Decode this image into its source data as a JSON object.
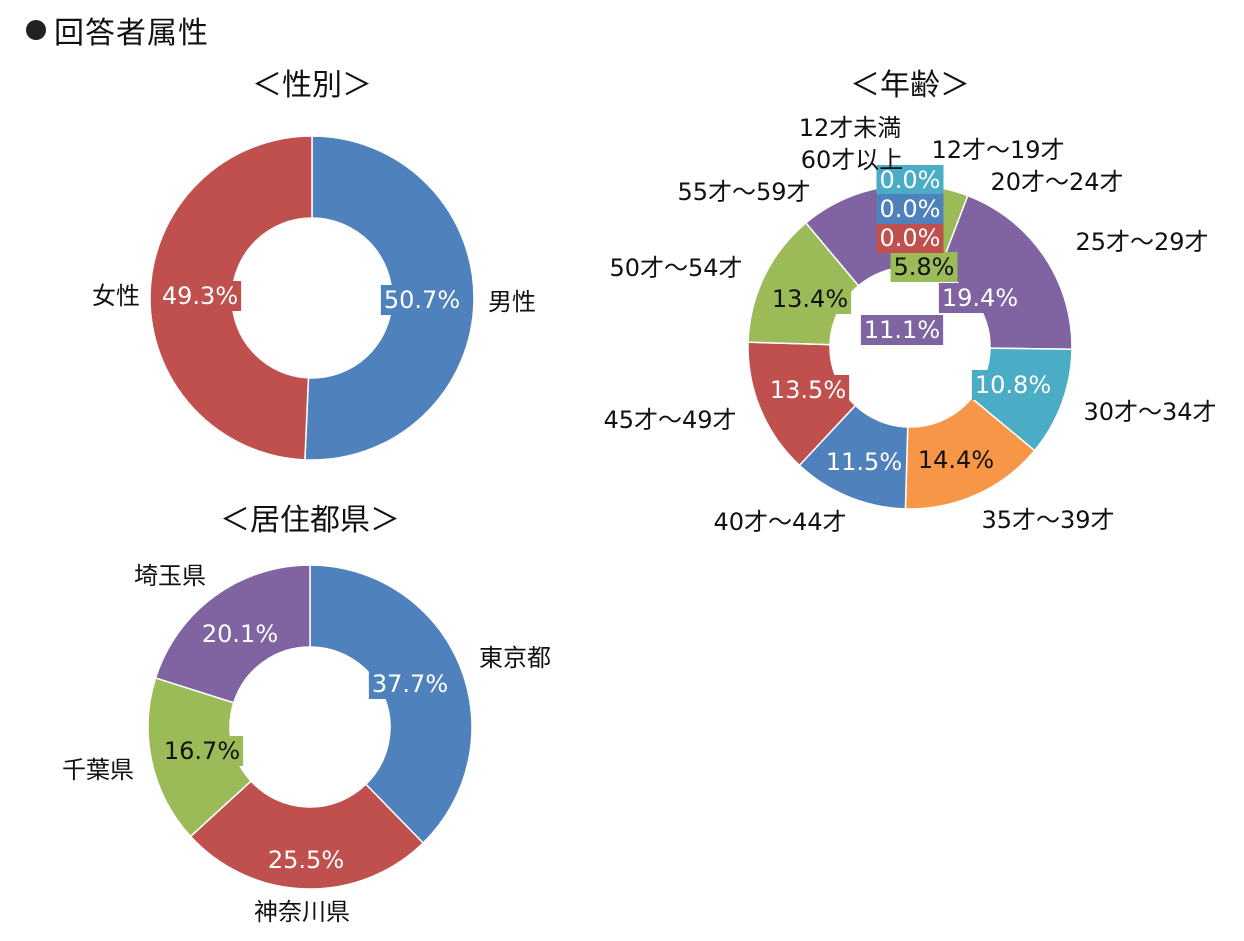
{
  "page": {
    "heading": "回答者属性"
  },
  "chart_data": [
    {
      "type": "pie",
      "title": "＜性別＞",
      "categories": [
        "男性",
        "女性"
      ],
      "values": [
        50.7,
        49.3
      ],
      "value_labels": [
        "50.7%",
        "49.3%"
      ],
      "colors": [
        "#4F81BD",
        "#C0504D"
      ],
      "label_colors": [
        "#ffffff",
        "#ffffff"
      ]
    },
    {
      "type": "pie",
      "title": "＜年齢＞",
      "categories": [
        "12才未満",
        "12才～19才",
        "20才～24才",
        "25才～29才",
        "30才～34才",
        "35才～39才",
        "40才～44才",
        "45才～49才",
        "50才～54才",
        "55才～59才",
        "60才以上"
      ],
      "values": [
        0.0,
        5.8,
        0.0,
        19.4,
        10.8,
        14.4,
        11.5,
        13.5,
        13.4,
        11.1,
        0.0
      ],
      "value_labels": [
        "0.0%",
        "5.8%",
        "0.0%",
        "19.4%",
        "10.8%",
        "14.4%",
        "11.5%",
        "13.5%",
        "13.4%",
        "11.1%",
        "0.0%"
      ],
      "colors": [
        "#4BACC6",
        "#9BBB59",
        "#C0504D",
        "#8064A2",
        "#4BACC6",
        "#F79646",
        "#4F81BD",
        "#C0504D",
        "#9BBB59",
        "#8064A2",
        "#4F81BD"
      ],
      "label_colors": [
        "#ffffff",
        "#111111",
        "#ffffff",
        "#ffffff",
        "#ffffff",
        "#111111",
        "#ffffff",
        "#ffffff",
        "#111111",
        "#ffffff",
        "#ffffff"
      ]
    },
    {
      "type": "pie",
      "title": "＜居住都県＞",
      "categories": [
        "東京都",
        "神奈川県",
        "千葉県",
        "埼玉県"
      ],
      "values": [
        37.7,
        25.5,
        16.7,
        20.1
      ],
      "value_labels": [
        "37.7%",
        "25.5%",
        "16.7%",
        "20.1%"
      ],
      "colors": [
        "#4F81BD",
        "#C0504D",
        "#9BBB59",
        "#8064A2"
      ],
      "label_colors": [
        "#ffffff",
        "#ffffff",
        "#111111",
        "#ffffff"
      ]
    }
  ]
}
